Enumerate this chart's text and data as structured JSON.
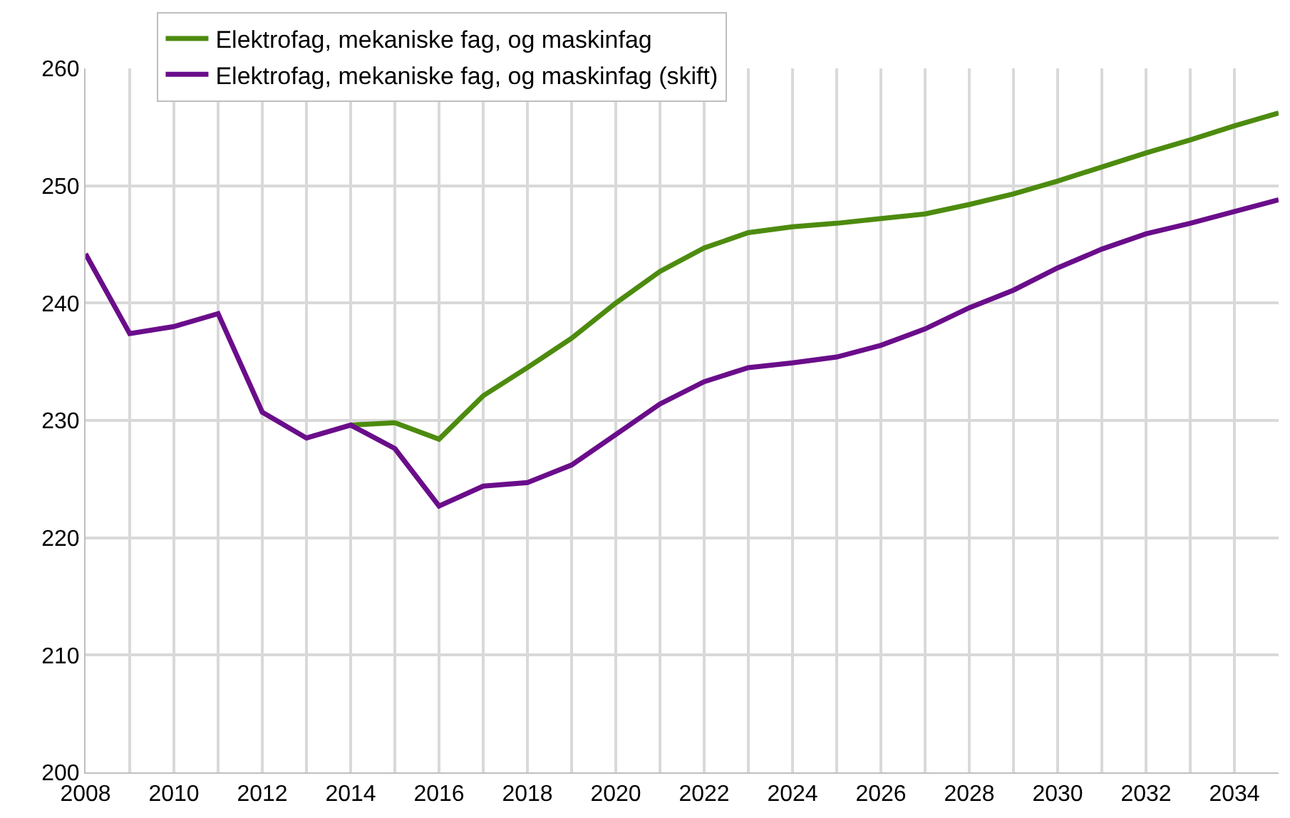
{
  "chart_data": {
    "type": "line",
    "x": [
      2008,
      2009,
      2010,
      2011,
      2012,
      2013,
      2014,
      2015,
      2016,
      2017,
      2018,
      2019,
      2020,
      2021,
      2022,
      2023,
      2024,
      2025,
      2026,
      2027,
      2028,
      2029,
      2030,
      2031,
      2032,
      2033,
      2034,
      2035
    ],
    "series": [
      {
        "name": "Elektrofag, mekaniske fag, og maskinfag",
        "color": "#4d8b0f",
        "values": [
          null,
          null,
          null,
          null,
          null,
          null,
          229.6,
          229.8,
          228.4,
          232.1,
          234.5,
          237.0,
          240.0,
          242.7,
          244.7,
          246.0,
          246.5,
          246.8,
          247.2,
          247.6,
          248.4,
          249.3,
          250.4,
          251.6,
          252.8,
          253.9,
          255.1,
          256.2
        ]
      },
      {
        "name": "Elektrofag, mekaniske fag, og maskinfag (skift)",
        "color": "#6a0d8a",
        "values": [
          244.2,
          237.4,
          238.0,
          239.1,
          230.7,
          228.5,
          229.6,
          227.6,
          222.7,
          224.4,
          224.7,
          226.2,
          228.8,
          231.4,
          233.3,
          234.5,
          234.9,
          235.4,
          236.4,
          237.8,
          239.6,
          241.1,
          243.0,
          244.6,
          245.9,
          246.8,
          247.8,
          248.8
        ]
      }
    ],
    "xlim": [
      2008,
      2035
    ],
    "xticks": [
      2008,
      {
        "value": 2009,
        "label": null
      },
      2010,
      {
        "value": 2011,
        "label": null
      },
      2012,
      {
        "value": 2013,
        "label": null
      },
      2014,
      {
        "value": 2015,
        "label": null
      },
      2016,
      {
        "value": 2017,
        "label": null
      },
      2018,
      {
        "value": 2019,
        "label": null
      },
      2020,
      {
        "value": 2021,
        "label": null
      },
      2022,
      {
        "value": 2023,
        "label": null
      },
      2024,
      {
        "value": 2025,
        "label": null
      },
      2026,
      {
        "value": 2027,
        "label": null
      },
      2028,
      {
        "value": 2029,
        "label": null
      },
      2030,
      {
        "value": 2031,
        "label": null
      },
      2032,
      {
        "value": 2033,
        "label": null
      },
      2034
    ],
    "ylim": [
      200,
      260
    ],
    "yticks": [
      200,
      210,
      220,
      230,
      240,
      250,
      260
    ],
    "grid": true,
    "legend": "top left",
    "marker": "none",
    "line_style": "solid"
  }
}
